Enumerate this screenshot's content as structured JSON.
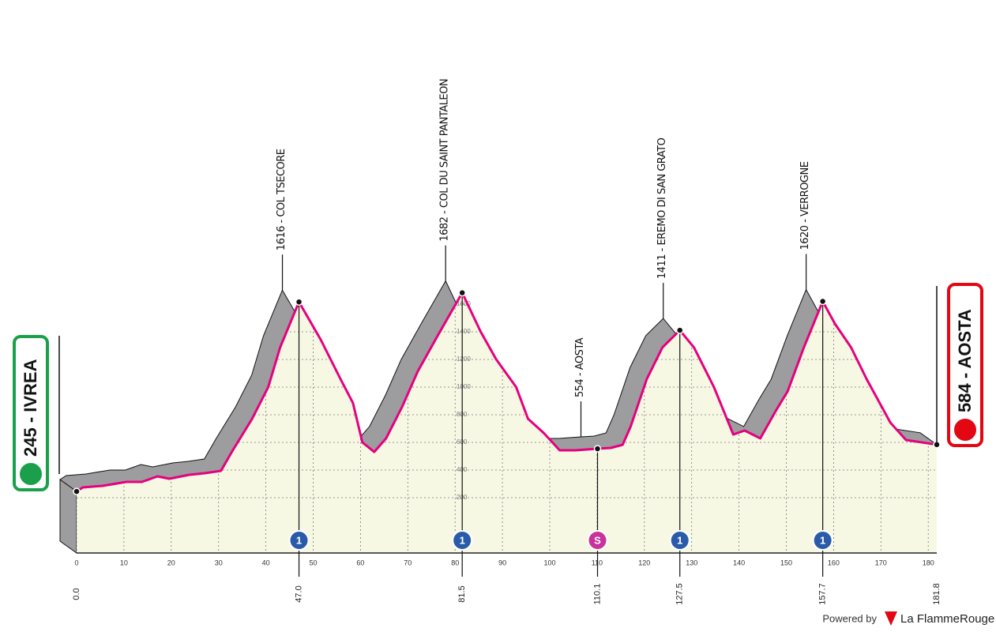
{
  "chart_data": {
    "type": "area",
    "x": [
      0,
      1.3,
      5.5,
      10.5,
      13.8,
      17.1,
      19.6,
      23.8,
      27.1,
      30.5,
      33,
      37.1,
      40.5,
      43,
      47,
      51.6,
      55.8,
      58.4,
      60.4,
      62.9,
      65.4,
      68.8,
      72.1,
      76.3,
      81.5,
      85.4,
      88.7,
      92.9,
      95.4,
      98.7,
      102.1,
      105.4,
      110.1,
      112.9,
      115.4,
      117.1,
      120.5,
      123.8,
      127.5,
      130.5,
      134.7,
      138.8,
      141.2,
      144.5,
      147.8,
      150.3,
      153.7,
      157.7,
      160.3,
      163.7,
      167,
      172,
      175.3,
      181.8
    ],
    "values": [
      245,
      274,
      286,
      314,
      314,
      354,
      337,
      366,
      377,
      394,
      543,
      771,
      1000,
      1286,
      1616,
      1343,
      1057,
      886,
      600,
      531,
      629,
      857,
      1114,
      1371,
      1682,
      1400,
      1200,
      1000,
      771,
      669,
      543,
      543,
      554,
      560,
      583,
      714,
      1057,
      1286,
      1411,
      1286,
      1000,
      657,
      686,
      629,
      829,
      971,
      1286,
      1620,
      1457,
      1286,
      1057,
      743,
      617,
      584
    ],
    "color": "#e5007e",
    "fill": "#f7f8e4",
    "wall": "#9d9d9f",
    "xlim": [
      0,
      181.8
    ],
    "ylim": [
      -200,
      1600
    ],
    "xticks": [
      0,
      10,
      20,
      30,
      40,
      50,
      60,
      70,
      80,
      90,
      100,
      110,
      120,
      130,
      140,
      150,
      160,
      170,
      180
    ],
    "yticks": [
      200,
      400,
      600,
      800,
      1000,
      1200,
      1400,
      1600
    ],
    "grid": true,
    "start": "245 - IVREA",
    "finish": "584 - AOSTA",
    "waypoints": [
      {
        "km": {
          "value": 0,
          "label": "0.0"
        }
      },
      {
        "km": {
          "value": 47,
          "label": "47.0"
        },
        "name": "1616 - COL TSECORE",
        "badge": "1"
      },
      {
        "km": {
          "value": 81.5,
          "label": "81.5"
        },
        "name": "1682 - COL DU SAINT PANTALEON",
        "badge": "1"
      },
      {
        "km": {
          "value": 110.1,
          "label": "110.1"
        },
        "name": "554 - AOSTA",
        "badge": "S"
      },
      {
        "km": {
          "value": 127.5,
          "label": "127.5"
        },
        "name": "1411 - EREMO DI SAN GRATO",
        "badge": "1"
      },
      {
        "km": {
          "value": 157.7,
          "label": "157.7"
        },
        "name": "1620 - VERROGNE",
        "badge": "1"
      },
      {
        "km": {
          "value": 181.8,
          "label": "181.8"
        }
      }
    ]
  },
  "footer": {
    "powered": "Powered by",
    "brand": "La FlammeRouge"
  }
}
